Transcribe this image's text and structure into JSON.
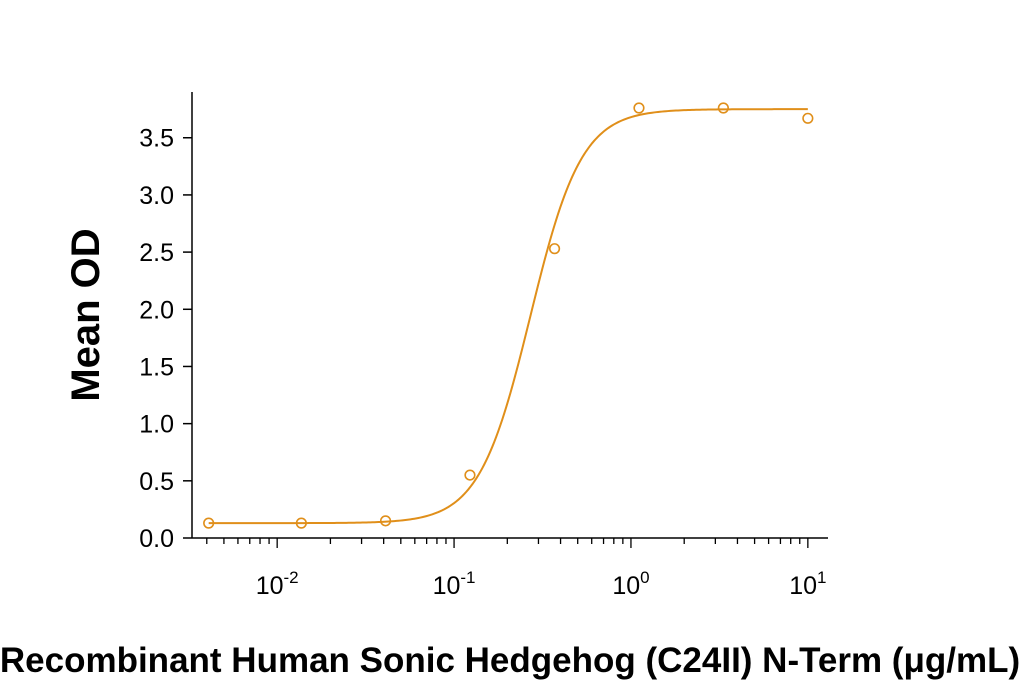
{
  "chart_data": {
    "type": "scatter",
    "title": "",
    "xlabel": "Recombinant Human Sonic Hedgehog (C24II) N-Term (μg/mL)",
    "ylabel": "Mean OD",
    "x_scale": "log",
    "xlim": [
      0.0033,
      13
    ],
    "ylim": [
      0,
      3.9
    ],
    "x_ticks": [
      {
        "value": 0.01,
        "base": "10",
        "exp": "-2"
      },
      {
        "value": 0.1,
        "base": "10",
        "exp": "-1"
      },
      {
        "value": 1,
        "base": "10",
        "exp": "0"
      },
      {
        "value": 10,
        "base": "10",
        "exp": "1"
      }
    ],
    "y_ticks": [
      {
        "value": 0.0,
        "label": "0.0"
      },
      {
        "value": 0.5,
        "label": "0.5"
      },
      {
        "value": 1.0,
        "label": "1.0"
      },
      {
        "value": 1.5,
        "label": "1.5"
      },
      {
        "value": 2.0,
        "label": "2.0"
      },
      {
        "value": 2.5,
        "label": "2.5"
      },
      {
        "value": 3.0,
        "label": "3.0"
      },
      {
        "value": 3.5,
        "label": "3.5"
      }
    ],
    "grid": false,
    "legend": "none",
    "color": "#e08f1a",
    "series": [
      {
        "x": [
          0.0041,
          0.0137,
          0.041,
          0.123,
          0.37,
          1.11,
          3.33,
          10.0
        ],
        "y": [
          0.13,
          0.13,
          0.15,
          0.55,
          2.53,
          3.76,
          3.76,
          3.67
        ]
      }
    ],
    "fit": {
      "type": "4PL",
      "bottom": 0.13,
      "top": 3.75,
      "ec50": 0.27,
      "hill": 3.0
    }
  }
}
